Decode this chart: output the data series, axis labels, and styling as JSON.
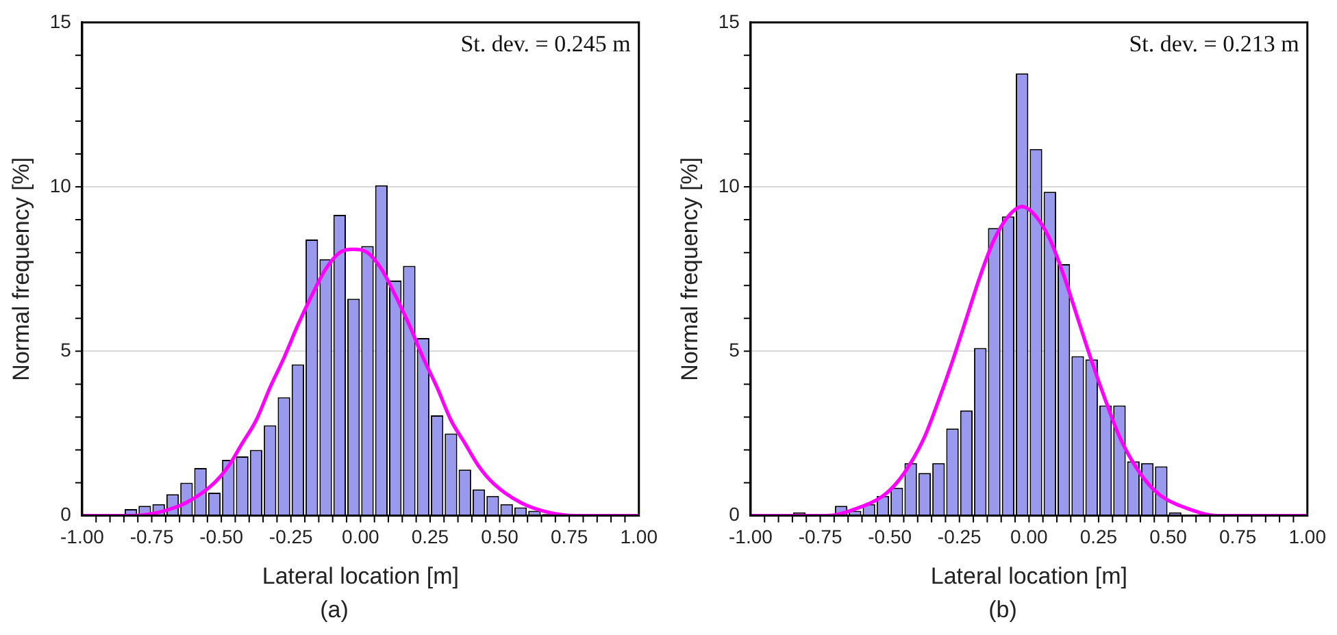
{
  "chart_data": [
    {
      "type": "histogram",
      "title": "(a)",
      "xlabel": "Lateral location [m]",
      "ylabel": "Normal frequency [%]",
      "annotations": [
        "St. dev. = 0.245 m"
      ],
      "bins": [
        -1,
        -0.95,
        -0.9,
        -0.85,
        -0.8,
        -0.75,
        -0.7,
        -0.65,
        -0.6,
        -0.55,
        -0.5,
        -0.45,
        -0.4,
        -0.35,
        -0.3,
        -0.25,
        -0.2,
        -0.15,
        -0.1,
        -0.05,
        0,
        0.05,
        0.1,
        0.15,
        0.2,
        0.25,
        0.3,
        0.35,
        0.4,
        0.45,
        0.5,
        0.55,
        0.6,
        0.65,
        0.7,
        0.75,
        0.8,
        0.85,
        0.9,
        0.95,
        1
      ],
      "series": [
        {
          "type": "histogram",
          "color": "#9999ee",
          "values": [
            0,
            0,
            0,
            0.2,
            0.3,
            0.35,
            0.65,
            1.0,
            1.45,
            0.7,
            1.7,
            1.8,
            2.0,
            2.75,
            3.6,
            4.6,
            8.4,
            7.8,
            9.15,
            6.6,
            8.2,
            10.05,
            7.15,
            7.6,
            5.4,
            3.05,
            2.5,
            1.4,
            0.8,
            0.6,
            0.35,
            0.25,
            0.15,
            0.05,
            0,
            0,
            0,
            0,
            0,
            0
          ]
        },
        {
          "type": "line",
          "color": "#ff00ff",
          "x": [
            -1.0,
            -0.825,
            -0.725,
            -0.625,
            -0.525,
            -0.475,
            -0.425,
            -0.375,
            -0.325,
            -0.275,
            -0.225,
            -0.175,
            -0.125,
            -0.075,
            -0.025,
            0.025,
            0.075,
            0.125,
            0.175,
            0.225,
            0.275,
            0.325,
            0.375,
            0.425,
            0.475,
            0.575,
            0.675,
            0.775,
            1.0
          ],
          "values": [
            0,
            0,
            0.1,
            0.4,
            1.0,
            1.5,
            2.2,
            2.9,
            3.9,
            4.8,
            5.8,
            6.7,
            7.5,
            8.0,
            8.1,
            8.0,
            7.5,
            6.7,
            5.8,
            4.8,
            3.9,
            2.9,
            2.2,
            1.5,
            1.0,
            0.4,
            0.1,
            0,
            0
          ]
        }
      ],
      "xlim": [
        -1,
        1
      ],
      "xticks": [
        {
          "value": -1,
          "label": "-1.00"
        },
        {
          "value": -0.95,
          "label": null
        },
        {
          "value": -0.9,
          "label": null
        },
        {
          "value": -0.85,
          "label": null
        },
        {
          "value": -0.8,
          "label": null
        },
        {
          "value": -0.75,
          "label": "-0.75"
        },
        {
          "value": -0.7,
          "label": null
        },
        {
          "value": -0.65,
          "label": null
        },
        {
          "value": -0.6,
          "label": null
        },
        {
          "value": -0.55,
          "label": null
        },
        {
          "value": -0.5,
          "label": "-0.50"
        },
        {
          "value": -0.45,
          "label": null
        },
        {
          "value": -0.4,
          "label": null
        },
        {
          "value": -0.35,
          "label": null
        },
        {
          "value": -0.3,
          "label": null
        },
        {
          "value": -0.25,
          "label": "-0.25"
        },
        {
          "value": -0.2,
          "label": null
        },
        {
          "value": -0.15,
          "label": null
        },
        {
          "value": -0.1,
          "label": null
        },
        {
          "value": -0.05,
          "label": null
        },
        {
          "value": 0,
          "label": "0.00"
        },
        {
          "value": 0.05,
          "label": null
        },
        {
          "value": 0.1,
          "label": null
        },
        {
          "value": 0.15,
          "label": null
        },
        {
          "value": 0.2,
          "label": null
        },
        {
          "value": 0.25,
          "label": "0.25"
        },
        {
          "value": 0.3,
          "label": null
        },
        {
          "value": 0.35,
          "label": null
        },
        {
          "value": 0.4,
          "label": null
        },
        {
          "value": 0.45,
          "label": null
        },
        {
          "value": 0.5,
          "label": "0.50"
        },
        {
          "value": 0.55,
          "label": null
        },
        {
          "value": 0.6,
          "label": null
        },
        {
          "value": 0.65,
          "label": null
        },
        {
          "value": 0.7,
          "label": null
        },
        {
          "value": 0.75,
          "label": "0.75"
        },
        {
          "value": 0.8,
          "label": null
        },
        {
          "value": 0.85,
          "label": null
        },
        {
          "value": 0.9,
          "label": null
        },
        {
          "value": 0.95,
          "label": null
        },
        {
          "value": 1,
          "label": "1.00"
        }
      ],
      "ylim": [
        0,
        15
      ],
      "yticks": [
        0,
        {
          "value": 1,
          "label": null
        },
        {
          "value": 2,
          "label": null
        },
        {
          "value": 3,
          "label": null
        },
        {
          "value": 4,
          "label": null
        },
        5,
        {
          "value": 6,
          "label": null
        },
        {
          "value": 7,
          "label": null
        },
        {
          "value": 8,
          "label": null
        },
        {
          "value": 9,
          "label": null
        },
        10,
        {
          "value": 11,
          "label": null
        },
        {
          "value": 12,
          "label": null
        },
        {
          "value": 13,
          "label": null
        },
        {
          "value": 14,
          "label": null
        },
        15
      ],
      "grid": "y",
      "legend": false
    },
    {
      "type": "histogram",
      "title": "(b)",
      "xlabel": "Lateral location [m]",
      "ylabel": "Normal frequency [%]",
      "annotations": [
        "St. dev. = 0.213 m"
      ],
      "bins": [
        -1,
        -0.95,
        -0.9,
        -0.85,
        -0.8,
        -0.75,
        -0.7,
        -0.65,
        -0.6,
        -0.55,
        -0.5,
        -0.45,
        -0.4,
        -0.35,
        -0.3,
        -0.25,
        -0.2,
        -0.15,
        -0.1,
        -0.05,
        0,
        0.05,
        0.1,
        0.15,
        0.2,
        0.25,
        0.3,
        0.35,
        0.4,
        0.45,
        0.5,
        0.55,
        0.6,
        0.65,
        0.7,
        0.75,
        0.8,
        0.85,
        0.9,
        0.95,
        1
      ],
      "series": [
        {
          "type": "histogram",
          "color": "#9999ee",
          "values": [
            0,
            0,
            0,
            0.1,
            0,
            0,
            0.3,
            0.15,
            0.35,
            0.6,
            0.85,
            1.6,
            1.3,
            1.6,
            2.65,
            3.2,
            5.1,
            8.75,
            9.1,
            13.45,
            11.15,
            9.85,
            7.65,
            4.85,
            4.75,
            3.35,
            3.35,
            1.65,
            1.6,
            1.5,
            0.1,
            0,
            0,
            0,
            0,
            0,
            0,
            0,
            0,
            0
          ]
        },
        {
          "type": "line",
          "color": "#ff00ff",
          "x": [
            -1.0,
            -0.825,
            -0.725,
            -0.625,
            -0.525,
            -0.475,
            -0.425,
            -0.375,
            -0.325,
            -0.275,
            -0.225,
            -0.175,
            -0.125,
            -0.075,
            -0.025,
            0.025,
            0.075,
            0.125,
            0.175,
            0.225,
            0.275,
            0.325,
            0.375,
            0.425,
            0.475,
            0.575,
            0.675,
            0.775,
            1.0
          ],
          "values": [
            0,
            0,
            0,
            0.2,
            0.6,
            1.0,
            1.6,
            2.4,
            3.5,
            4.7,
            6.0,
            7.3,
            8.4,
            9.1,
            9.4,
            9.1,
            8.4,
            7.3,
            6.0,
            4.7,
            3.5,
            2.4,
            1.6,
            1.0,
            0.6,
            0.2,
            0,
            0,
            0
          ]
        }
      ],
      "xlim": [
        -1,
        1
      ],
      "xticks": [
        {
          "value": -1,
          "label": "-1.00"
        },
        {
          "value": -0.95,
          "label": null
        },
        {
          "value": -0.9,
          "label": null
        },
        {
          "value": -0.85,
          "label": null
        },
        {
          "value": -0.8,
          "label": null
        },
        {
          "value": -0.75,
          "label": "-0.75"
        },
        {
          "value": -0.7,
          "label": null
        },
        {
          "value": -0.65,
          "label": null
        },
        {
          "value": -0.6,
          "label": null
        },
        {
          "value": -0.55,
          "label": null
        },
        {
          "value": -0.5,
          "label": "-0.50"
        },
        {
          "value": -0.45,
          "label": null
        },
        {
          "value": -0.4,
          "label": null
        },
        {
          "value": -0.35,
          "label": null
        },
        {
          "value": -0.3,
          "label": null
        },
        {
          "value": -0.25,
          "label": "-0.25"
        },
        {
          "value": -0.2,
          "label": null
        },
        {
          "value": -0.15,
          "label": null
        },
        {
          "value": -0.1,
          "label": null
        },
        {
          "value": -0.05,
          "label": null
        },
        {
          "value": 0,
          "label": "0.00"
        },
        {
          "value": 0.05,
          "label": null
        },
        {
          "value": 0.1,
          "label": null
        },
        {
          "value": 0.15,
          "label": null
        },
        {
          "value": 0.2,
          "label": null
        },
        {
          "value": 0.25,
          "label": "0.25"
        },
        {
          "value": 0.3,
          "label": null
        },
        {
          "value": 0.35,
          "label": null
        },
        {
          "value": 0.4,
          "label": null
        },
        {
          "value": 0.45,
          "label": null
        },
        {
          "value": 0.5,
          "label": "0.50"
        },
        {
          "value": 0.55,
          "label": null
        },
        {
          "value": 0.6,
          "label": null
        },
        {
          "value": 0.65,
          "label": null
        },
        {
          "value": 0.7,
          "label": null
        },
        {
          "value": 0.75,
          "label": "0.75"
        },
        {
          "value": 0.8,
          "label": null
        },
        {
          "value": 0.85,
          "label": null
        },
        {
          "value": 0.9,
          "label": null
        },
        {
          "value": 0.95,
          "label": null
        },
        {
          "value": 1,
          "label": "1.00"
        }
      ],
      "ylim": [
        0,
        15
      ],
      "yticks": [
        0,
        {
          "value": 1,
          "label": null
        },
        {
          "value": 2,
          "label": null
        },
        {
          "value": 3,
          "label": null
        },
        {
          "value": 4,
          "label": null
        },
        5,
        {
          "value": 6,
          "label": null
        },
        {
          "value": 7,
          "label": null
        },
        {
          "value": 8,
          "label": null
        },
        {
          "value": 9,
          "label": null
        },
        10,
        {
          "value": 11,
          "label": null
        },
        {
          "value": 12,
          "label": null
        },
        {
          "value": 13,
          "label": null
        },
        {
          "value": 14,
          "label": null
        },
        15
      ],
      "grid": "y",
      "legend": false
    }
  ]
}
